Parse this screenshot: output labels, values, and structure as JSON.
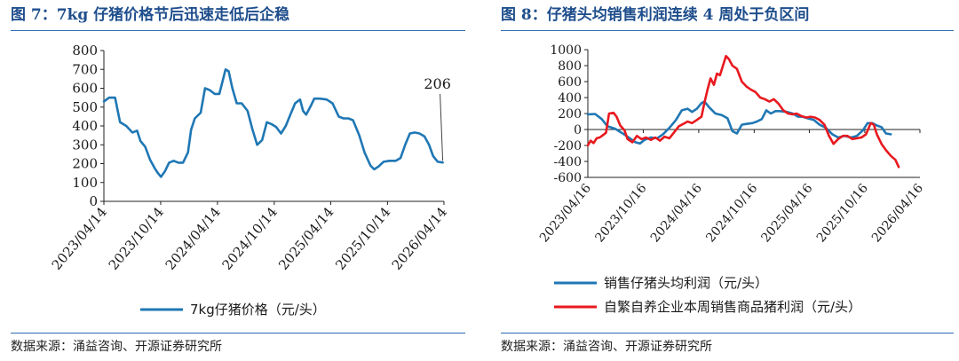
{
  "left_panel": {
    "title": "图 7：7kg 仔猪价格节后迅速走低后企稳",
    "source": "数据来源：涌益咨询、开源证券研究所"
  },
  "right_panel": {
    "title": "图 8：仔猪头均销售利润连续 4 周处于负区间",
    "source": "数据来源：涌益咨询、开源证券研究所"
  },
  "chart_data": [
    {
      "type": "line",
      "title": "图 7：7kg 仔猪价格节后迅速走低后企稳",
      "xlabel": "",
      "ylabel": "",
      "ylim": [
        0,
        800
      ],
      "yticks": [
        0,
        100,
        200,
        300,
        400,
        500,
        600,
        700,
        800
      ],
      "xticks": [
        "2023/04/14",
        "2023/10/14",
        "2024/04/14",
        "2024/10/14",
        "2025/04/14",
        "2025/10/14",
        "2026/04/14"
      ],
      "xlim": [
        "2023/04/14",
        "2026/04/14"
      ],
      "legend_position": "bottom",
      "annotations": [
        {
          "text": "206",
          "x": "2026/04/10",
          "y": 206
        }
      ],
      "series": [
        {
          "name": "7kg仔猪价格（元/头）",
          "color": "#1f77b4",
          "points": [
            [
              "2023/04/14",
              530
            ],
            [
              "2023/05/01",
              550
            ],
            [
              "2023/05/20",
              550
            ],
            [
              "2023/06/05",
              420
            ],
            [
              "2023/06/25",
              400
            ],
            [
              "2023/07/15",
              365
            ],
            [
              "2023/07/30",
              375
            ],
            [
              "2023/08/10",
              320
            ],
            [
              "2023/08/25",
              290
            ],
            [
              "2023/09/10",
              220
            ],
            [
              "2023/09/25",
              175
            ],
            [
              "2023/10/05",
              150
            ],
            [
              "2023/10/15",
              130
            ],
            [
              "2023/10/28",
              160
            ],
            [
              "2023/11/10",
              205
            ],
            [
              "2023/11/25",
              215
            ],
            [
              "2023/12/10",
              205
            ],
            [
              "2023/12/25",
              205
            ],
            [
              "2024/01/10",
              260
            ],
            [
              "2024/01/20",
              380
            ],
            [
              "2024/02/01",
              440
            ],
            [
              "2024/02/20",
              470
            ],
            [
              "2024/03/05",
              600
            ],
            [
              "2024/03/20",
              590
            ],
            [
              "2024/04/05",
              570
            ],
            [
              "2024/04/20",
              570
            ],
            [
              "2024/05/01",
              640
            ],
            [
              "2024/05/10",
              700
            ],
            [
              "2024/05/20",
              690
            ],
            [
              "2024/06/01",
              600
            ],
            [
              "2024/06/15",
              520
            ],
            [
              "2024/07/01",
              520
            ],
            [
              "2024/07/20",
              480
            ],
            [
              "2024/08/05",
              380
            ],
            [
              "2024/08/20",
              300
            ],
            [
              "2024/09/05",
              325
            ],
            [
              "2024/09/20",
              420
            ],
            [
              "2024/10/05",
              410
            ],
            [
              "2024/10/20",
              395
            ],
            [
              "2024/11/05",
              360
            ],
            [
              "2024/11/20",
              400
            ],
            [
              "2024/12/05",
              460
            ],
            [
              "2024/12/20",
              520
            ],
            [
              "2025/01/05",
              540
            ],
            [
              "2025/01/15",
              480
            ],
            [
              "2025/01/25",
              460
            ],
            [
              "2025/02/10",
              510
            ],
            [
              "2025/02/20",
              545
            ],
            [
              "2025/03/10",
              545
            ],
            [
              "2025/04/01",
              540
            ],
            [
              "2025/04/20",
              520
            ],
            [
              "2025/05/10",
              450
            ],
            [
              "2025/05/25",
              440
            ],
            [
              "2025/06/10",
              440
            ],
            [
              "2025/06/25",
              430
            ],
            [
              "2025/07/15",
              350
            ],
            [
              "2025/08/01",
              260
            ],
            [
              "2025/08/20",
              190
            ],
            [
              "2025/09/01",
              170
            ],
            [
              "2025/09/15",
              185
            ],
            [
              "2025/10/01",
              210
            ],
            [
              "2025/10/20",
              215
            ],
            [
              "2025/11/10",
              215
            ],
            [
              "2025/11/25",
              230
            ],
            [
              "2025/12/10",
              300
            ],
            [
              "2025/12/25",
              360
            ],
            [
              "2026/01/10",
              365
            ],
            [
              "2026/01/25",
              360
            ],
            [
              "2026/02/10",
              345
            ],
            [
              "2026/02/25",
              300
            ],
            [
              "2026/03/10",
              240
            ],
            [
              "2026/03/25",
              210
            ],
            [
              "2026/04/10",
              206
            ]
          ]
        }
      ]
    },
    {
      "type": "line",
      "title": "图 8：仔猪头均销售利润连续 4 周处于负区间",
      "xlabel": "",
      "ylabel": "",
      "ylim": [
        -600,
        1000
      ],
      "yticks": [
        -600,
        -400,
        -200,
        0,
        200,
        400,
        600,
        800,
        1000
      ],
      "xticks": [
        "2023/04/16",
        "2023/10/16",
        "2024/04/16",
        "2024/10/16",
        "2025/04/16",
        "2025/10/16",
        "2026/04/16"
      ],
      "xlim": [
        "2023/04/16",
        "2026/04/16"
      ],
      "legend_position": "bottom",
      "series": [
        {
          "name": "销售仔猪头均利润（元/头）",
          "color": "#1f77b4",
          "points": [
            [
              "2023/04/16",
              190
            ],
            [
              "2023/05/10",
              195
            ],
            [
              "2023/06/01",
              130
            ],
            [
              "2023/06/20",
              40
            ],
            [
              "2023/07/15",
              10
            ],
            [
              "2023/08/05",
              -40
            ],
            [
              "2023/08/25",
              -90
            ],
            [
              "2023/09/20",
              -160
            ],
            [
              "2023/10/05",
              -175
            ],
            [
              "2023/10/20",
              -130
            ],
            [
              "2023/11/10",
              -100
            ],
            [
              "2023/12/01",
              -110
            ],
            [
              "2023/12/20",
              -60
            ],
            [
              "2024/01/10",
              20
            ],
            [
              "2024/02/01",
              120
            ],
            [
              "2024/02/20",
              240
            ],
            [
              "2024/03/10",
              260
            ],
            [
              "2024/03/25",
              220
            ],
            [
              "2024/04/10",
              260
            ],
            [
              "2024/04/25",
              330
            ],
            [
              "2024/05/05",
              350
            ],
            [
              "2024/05/20",
              280
            ],
            [
              "2024/06/10",
              200
            ],
            [
              "2024/07/01",
              180
            ],
            [
              "2024/07/20",
              140
            ],
            [
              "2024/08/05",
              -20
            ],
            [
              "2024/08/20",
              -50
            ],
            [
              "2024/09/05",
              60
            ],
            [
              "2024/09/20",
              70
            ],
            [
              "2024/10/10",
              80
            ],
            [
              "2024/10/25",
              100
            ],
            [
              "2024/11/10",
              130
            ],
            [
              "2024/11/25",
              240
            ],
            [
              "2024/12/10",
              200
            ],
            [
              "2024/12/25",
              230
            ],
            [
              "2025/01/10",
              230
            ],
            [
              "2025/02/01",
              220
            ],
            [
              "2025/02/20",
              200
            ],
            [
              "2025/03/10",
              160
            ],
            [
              "2025/03/25",
              160
            ],
            [
              "2025/04/10",
              140
            ],
            [
              "2025/05/01",
              120
            ],
            [
              "2025/05/20",
              60
            ],
            [
              "2025/06/10",
              20
            ],
            [
              "2025/07/01",
              -60
            ],
            [
              "2025/07/20",
              -100
            ],
            [
              "2025/08/10",
              -80
            ],
            [
              "2025/09/01",
              -100
            ],
            [
              "2025/09/20",
              -80
            ],
            [
              "2025/10/10",
              -10
            ],
            [
              "2025/10/25",
              80
            ],
            [
              "2025/11/10",
              80
            ],
            [
              "2025/11/25",
              50
            ],
            [
              "2025/12/10",
              30
            ],
            [
              "2025/12/25",
              -50
            ],
            [
              "2026/01/10",
              -60
            ]
          ]
        },
        {
          "name": "自繁自养企业本周销售商品猪利润（元/头）",
          "color": "#e8191f",
          "points": [
            [
              "2023/04/16",
              -200
            ],
            [
              "2023/04/25",
              -140
            ],
            [
              "2023/05/05",
              -170
            ],
            [
              "2023/05/15",
              -110
            ],
            [
              "2023/05/25",
              -100
            ],
            [
              "2023/06/05",
              -70
            ],
            [
              "2023/06/15",
              -40
            ],
            [
              "2023/06/25",
              200
            ],
            [
              "2023/07/10",
              210
            ],
            [
              "2023/07/20",
              160
            ],
            [
              "2023/08/01",
              50
            ],
            [
              "2023/08/15",
              -10
            ],
            [
              "2023/08/25",
              -120
            ],
            [
              "2023/09/10",
              -160
            ],
            [
              "2023/09/25",
              -80
            ],
            [
              "2023/10/10",
              -120
            ],
            [
              "2023/10/25",
              -100
            ],
            [
              "2023/11/10",
              -130
            ],
            [
              "2023/11/25",
              -100
            ],
            [
              "2023/12/10",
              -140
            ],
            [
              "2023/12/25",
              -90
            ],
            [
              "2024/01/10",
              -110
            ],
            [
              "2024/01/25",
              -40
            ],
            [
              "2024/02/10",
              40
            ],
            [
              "2024/02/25",
              70
            ],
            [
              "2024/03/10",
              100
            ],
            [
              "2024/03/25",
              80
            ],
            [
              "2024/04/10",
              120
            ],
            [
              "2024/04/25",
              160
            ],
            [
              "2024/05/05",
              340
            ],
            [
              "2024/05/15",
              500
            ],
            [
              "2024/05/25",
              640
            ],
            [
              "2024/06/05",
              560
            ],
            [
              "2024/06/15",
              700
            ],
            [
              "2024/06/25",
              680
            ],
            [
              "2024/07/05",
              800
            ],
            [
              "2024/07/15",
              920
            ],
            [
              "2024/07/25",
              880
            ],
            [
              "2024/08/05",
              800
            ],
            [
              "2024/08/20",
              760
            ],
            [
              "2024/09/05",
              600
            ],
            [
              "2024/09/20",
              540
            ],
            [
              "2024/10/05",
              500
            ],
            [
              "2024/10/20",
              470
            ],
            [
              "2024/11/05",
              400
            ],
            [
              "2024/11/20",
              380
            ],
            [
              "2024/12/05",
              350
            ],
            [
              "2024/12/20",
              380
            ],
            [
              "2025/01/05",
              320
            ],
            [
              "2025/01/20",
              240
            ],
            [
              "2025/02/05",
              200
            ],
            [
              "2025/02/20",
              190
            ],
            [
              "2025/03/05",
              200
            ],
            [
              "2025/03/20",
              170
            ],
            [
              "2025/04/05",
              150
            ],
            [
              "2025/04/20",
              160
            ],
            [
              "2025/05/05",
              150
            ],
            [
              "2025/05/20",
              120
            ],
            [
              "2025/06/05",
              60
            ],
            [
              "2025/06/20",
              -80
            ],
            [
              "2025/07/05",
              -180
            ],
            [
              "2025/07/20",
              -120
            ],
            [
              "2025/08/05",
              -80
            ],
            [
              "2025/08/20",
              -80
            ],
            [
              "2025/09/05",
              -120
            ],
            [
              "2025/09/20",
              -110
            ],
            [
              "2025/10/05",
              -100
            ],
            [
              "2025/10/20",
              -60
            ],
            [
              "2025/11/05",
              80
            ],
            [
              "2025/11/15",
              60
            ],
            [
              "2025/11/25",
              -60
            ],
            [
              "2025/12/10",
              -180
            ],
            [
              "2025/12/25",
              -260
            ],
            [
              "2026/01/10",
              -330
            ],
            [
              "2026/01/25",
              -380
            ],
            [
              "2026/02/05",
              -470
            ]
          ]
        }
      ]
    }
  ]
}
